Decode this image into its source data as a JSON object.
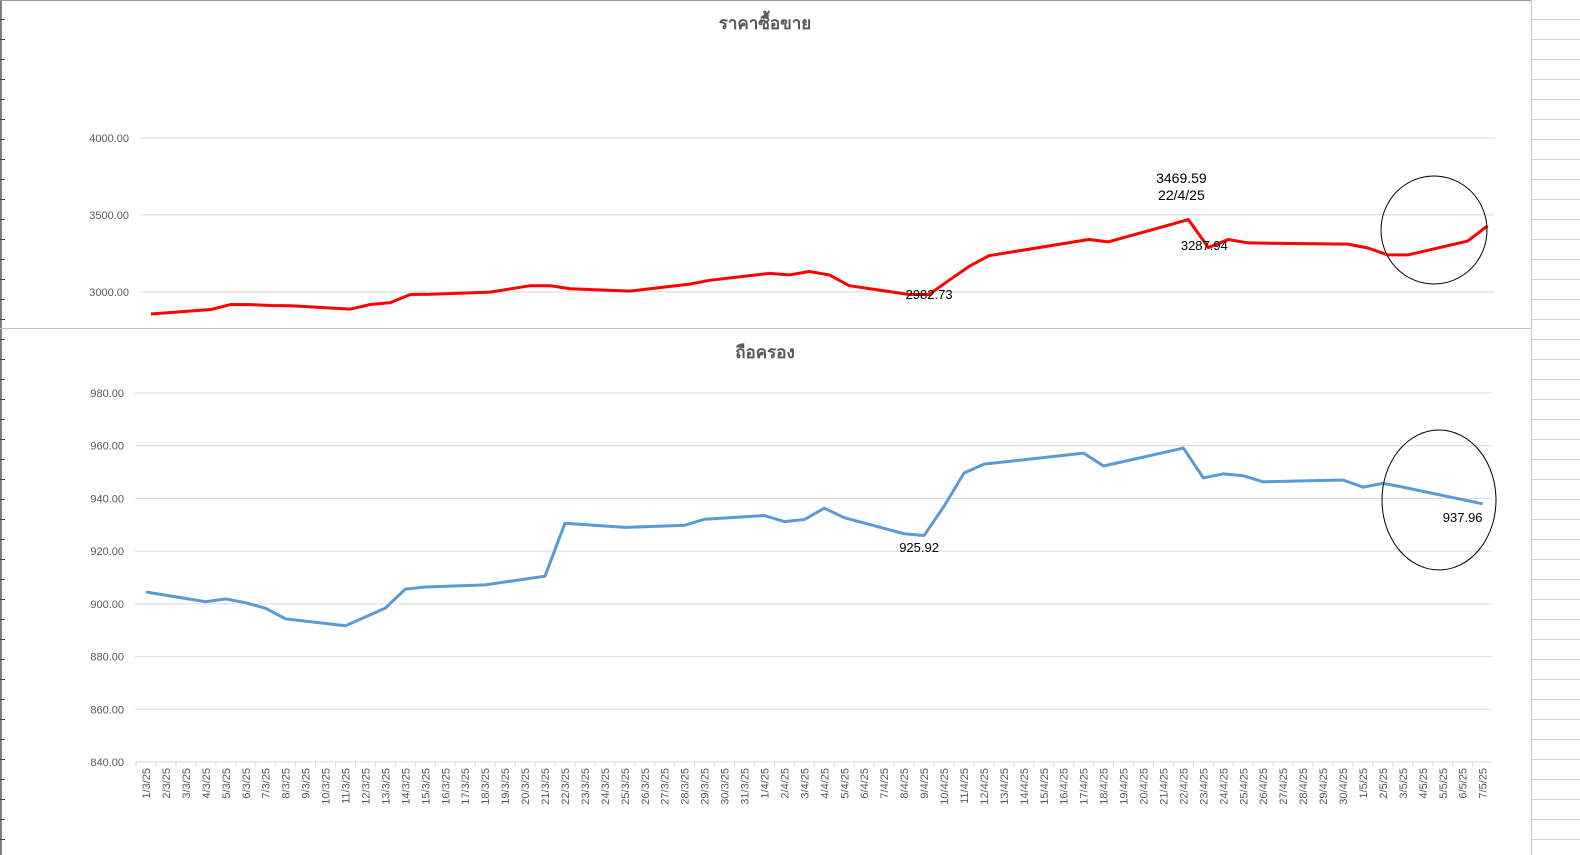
{
  "chart_data": [
    {
      "type": "line",
      "title": "ราคาซื้อขาย",
      "color": "#ff0000",
      "x": [
        "1/3/25",
        "4/3/25",
        "5/3/25",
        "6/3/25",
        "7/3/25",
        "8/3/25",
        "11/3/25",
        "12/3/25",
        "13/3/25",
        "14/3/25",
        "15/3/25",
        "18/3/25",
        "20/3/25",
        "21/3/25",
        "22/3/25",
        "25/3/25",
        "28/3/25",
        "29/3/25",
        "1/4/25",
        "2/4/25",
        "3/4/25",
        "4/4/25",
        "5/4/25",
        "8/4/25",
        "9/4/25",
        "10/4/25",
        "11/4/25",
        "12/4/25",
        "17/4/25",
        "18/4/25",
        "22/4/25",
        "23/4/25",
        "24/4/25",
        "25/4/25",
        "30/4/25",
        "1/5/25",
        "2/5/25",
        "3/5/25",
        "6/5/25",
        "7/5/25"
      ],
      "values": [
        2856,
        2885,
        2918,
        2917,
        2911,
        2910,
        2888,
        2918,
        2930,
        2983,
        2984,
        2998,
        3040,
        3040,
        3020,
        3005,
        3050,
        3075,
        3120,
        3110,
        3132,
        3110,
        3040,
        2982.73,
        2982.73,
        3075,
        3165,
        3235,
        3340,
        3325,
        3469.59,
        3287.94,
        3340,
        3318,
        3310,
        3285,
        3240,
        3240,
        3330,
        3430
      ],
      "ylim": [
        2700,
        4000
      ],
      "yticks": [
        "3000.00",
        "3500.00",
        "4000.00"
      ],
      "annotations": [
        {
          "label": "3469.59",
          "sub": "22/4/25"
        },
        {
          "label": "3287.94"
        },
        {
          "label": "2982.73"
        }
      ]
    },
    {
      "type": "line",
      "title": "ถือครอง",
      "color": "#5b9bd5",
      "x": [
        "1/3/25",
        "4/3/25",
        "5/3/25",
        "6/3/25",
        "7/3/25",
        "8/3/25",
        "11/3/25",
        "13/3/25",
        "14/3/25",
        "15/3/25",
        "18/3/25",
        "21/3/25",
        "22/3/25",
        "25/3/25",
        "28/3/25",
        "29/3/25",
        "1/4/25",
        "2/4/25",
        "3/4/25",
        "4/4/25",
        "5/4/25",
        "8/4/25",
        "9/4/25",
        "10/4/25",
        "11/4/25",
        "12/4/25",
        "17/4/25",
        "18/4/25",
        "22/4/25",
        "23/4/25",
        "24/4/25",
        "25/4/25",
        "26/4/25",
        "30/4/25",
        "1/5/25",
        "2/5/25",
        "3/5/25",
        "7/5/25"
      ],
      "values": [
        904.5,
        900.8,
        901.9,
        900.4,
        898.3,
        894.3,
        891.7,
        898.4,
        905.6,
        906.4,
        907.2,
        910.5,
        930.6,
        929,
        929.8,
        932.1,
        933.5,
        931.2,
        932,
        936.3,
        932.7,
        926.6,
        925.92,
        937,
        949.6,
        953,
        957.2,
        952.3,
        959.1,
        947.8,
        949.3,
        948.6,
        946.3,
        947,
        944.3,
        945.7,
        944.3,
        937.96
      ],
      "ylim": [
        840,
        980
      ],
      "yticks": [
        "840.00",
        "860.00",
        "880.00",
        "900.00",
        "920.00",
        "940.00",
        "960.00",
        "980.00"
      ],
      "annotations": [
        {
          "label": "925.92"
        },
        {
          "label": "937.96"
        }
      ]
    }
  ],
  "x_axis_labels": [
    "1/3/25",
    "2/3/25",
    "3/3/25",
    "4/3/25",
    "5/3/25",
    "6/3/25",
    "7/3/25",
    "8/3/25",
    "9/3/25",
    "10/3/25",
    "11/3/25",
    "12/3/25",
    "13/3/25",
    "14/3/25",
    "15/3/25",
    "16/3/25",
    "17/3/25",
    "18/3/25",
    "19/3/25",
    "20/3/25",
    "21/3/25",
    "22/3/25",
    "23/3/25",
    "24/3/25",
    "25/3/25",
    "26/3/25",
    "27/3/25",
    "28/3/25",
    "29/3/25",
    "30/3/25",
    "31/3/25",
    "1/4/25",
    "2/4/25",
    "3/4/25",
    "4/4/25",
    "5/4/25",
    "6/4/25",
    "7/4/25",
    "8/4/25",
    "9/4/25",
    "10/4/25",
    "11/4/25",
    "12/4/25",
    "13/4/25",
    "14/4/25",
    "15/4/25",
    "16/4/25",
    "17/4/25",
    "18/4/25",
    "19/4/25",
    "20/4/25",
    "21/4/25",
    "22/4/25",
    "23/4/25",
    "24/4/25",
    "25/4/25",
    "26/4/25",
    "27/4/25",
    "28/4/25",
    "29/4/25",
    "30/4/25",
    "1/5/25",
    "2/5/25",
    "3/5/25",
    "4/5/25",
    "5/5/25",
    "6/5/25",
    "7/5/25"
  ]
}
